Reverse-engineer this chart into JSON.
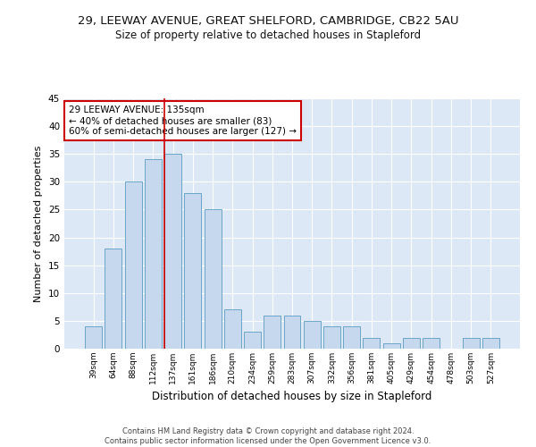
{
  "title_line1": "29, LEEWAY AVENUE, GREAT SHELFORD, CAMBRIDGE, CB22 5AU",
  "title_line2": "Size of property relative to detached houses in Stapleford",
  "xlabel": "Distribution of detached houses by size in Stapleford",
  "ylabel": "Number of detached properties",
  "categories": [
    "39sqm",
    "64sqm",
    "88sqm",
    "112sqm",
    "137sqm",
    "161sqm",
    "186sqm",
    "210sqm",
    "234sqm",
    "259sqm",
    "283sqm",
    "307sqm",
    "332sqm",
    "356sqm",
    "381sqm",
    "405sqm",
    "429sqm",
    "454sqm",
    "478sqm",
    "503sqm",
    "527sqm"
  ],
  "values": [
    4,
    18,
    30,
    34,
    35,
    28,
    25,
    7,
    3,
    6,
    6,
    5,
    4,
    4,
    2,
    1,
    2,
    2,
    0,
    2,
    2
  ],
  "bar_color": "#c5d8ed",
  "bar_edge_color": "#5a9bbf",
  "vline_color": "#cc0000",
  "annotation_text": "29 LEEWAY AVENUE: 135sqm\n← 40% of detached houses are smaller (83)\n60% of semi-detached houses are larger (127) →",
  "annotation_box_edgecolor": "#cc0000",
  "annotation_fontsize": 7.5,
  "ylim": [
    0,
    45
  ],
  "yticks": [
    0,
    5,
    10,
    15,
    20,
    25,
    30,
    35,
    40,
    45
  ],
  "background_color": "#dce8f5",
  "footer_text": "Contains HM Land Registry data © Crown copyright and database right 2024.\nContains public sector information licensed under the Open Government Licence v3.0.",
  "title_fontsize": 9.5,
  "subtitle_fontsize": 8.5,
  "xlabel_fontsize": 8.5,
  "ylabel_fontsize": 8,
  "footer_fontsize": 6
}
